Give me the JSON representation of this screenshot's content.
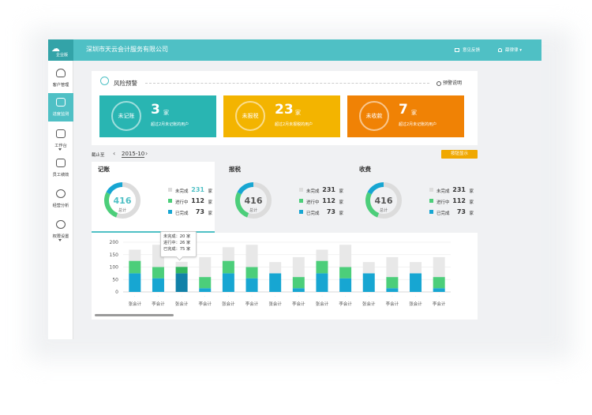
{
  "app": {
    "brand": "企业版",
    "company": "深圳市天云会计服务有限公司",
    "feedback": "意见反馈",
    "user": "薛律律"
  },
  "sidebar": {
    "items": [
      {
        "label": "客户管理",
        "icon": "user-icon"
      },
      {
        "label": "进度监测",
        "icon": "line-chart-icon"
      },
      {
        "label": "工作台",
        "icon": "monitor-icon"
      },
      {
        "label": "员工绩效",
        "icon": "sliders-icon"
      },
      {
        "label": "经营分析",
        "icon": "pie-chart-icon"
      },
      {
        "label": "权限设置",
        "icon": "gear-icon"
      }
    ]
  },
  "alert": {
    "title": "风险预警",
    "note": "预警说明",
    "cards": [
      {
        "circle": "未记账",
        "count": "3",
        "unit": "家",
        "desc": "超过2月未记账的用户",
        "color": "#29b5b2"
      },
      {
        "circle": "未报税",
        "count": "23",
        "unit": "家",
        "desc": "超过2月未报税的用户",
        "color": "#f3b400"
      },
      {
        "circle": "未收款",
        "count": "7",
        "unit": "家",
        "desc": "超过2月未记账的用户",
        "color": "#f08205"
      }
    ]
  },
  "filter": {
    "label": "截止至",
    "date": "2015-10",
    "prev": "‹",
    "next": "›",
    "button": "按钮显示"
  },
  "panels": [
    {
      "title": "记账",
      "total": "416",
      "total_label": "总计",
      "values": [
        231,
        112,
        73
      ]
    },
    {
      "title": "报税",
      "total": "416",
      "total_label": "总计",
      "values": [
        231,
        112,
        73
      ]
    },
    {
      "title": "收费",
      "total": "416",
      "total_label": "总计",
      "values": [
        231,
        112,
        73
      ]
    }
  ],
  "legend": {
    "labels": [
      "未完成",
      "进行中",
      "已完成"
    ],
    "unit": "家",
    "colors": [
      "#dcdcdc",
      "#4cce7a",
      "#17a6d2"
    ]
  },
  "tooltip": {
    "lines": [
      "未完成：20 家",
      "进行中：26 家",
      "已完成：75 家"
    ]
  },
  "chart_data": {
    "type": "bar",
    "stacked": true,
    "categories": [
      "张会计",
      "李会计",
      "张会计",
      "李会计",
      "张会计",
      "李会计",
      "张会计",
      "李会计",
      "张会计",
      "李会计",
      "张会计",
      "李会计",
      "张会计",
      "李会计"
    ],
    "series": [
      {
        "name": "已完成",
        "values": [
          75,
          55,
          75,
          15,
          75,
          55,
          75,
          15,
          75,
          55,
          75,
          15,
          75,
          15
        ]
      },
      {
        "name": "进行中",
        "values": [
          50,
          45,
          26,
          45,
          50,
          45,
          0,
          45,
          50,
          45,
          0,
          45,
          0,
          45
        ]
      },
      {
        "name": "未完成",
        "values": [
          45,
          90,
          20,
          80,
          55,
          90,
          45,
          80,
          45,
          90,
          45,
          80,
          45,
          80
        ]
      }
    ],
    "ylim": [
      0,
      200
    ],
    "yticks": [
      0,
      50,
      100,
      150,
      200
    ],
    "colors": {
      "已完成": "#17a6d2",
      "进行中": "#4cce7a",
      "未完成": "#e8e8e8"
    },
    "highlight_index": 2
  }
}
